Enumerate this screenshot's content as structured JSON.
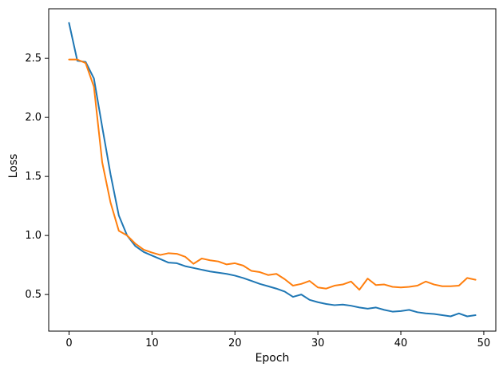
{
  "figure": {
    "background": "#ffffff"
  },
  "chart_data": {
    "type": "line",
    "title": "",
    "xlabel": "Epoch",
    "ylabel": "Loss",
    "legend": "none",
    "grid": false,
    "axis_color": "#000000",
    "xlim": [
      -2.45,
      51.45
    ],
    "ylim": [
      0.19,
      2.92
    ],
    "xticks": [
      0,
      10,
      20,
      30,
      40,
      50
    ],
    "yticks": [
      0.5,
      1.0,
      1.5,
      2.0,
      2.5
    ],
    "x": [
      0,
      1,
      2,
      3,
      4,
      5,
      6,
      7,
      8,
      9,
      10,
      11,
      12,
      13,
      14,
      15,
      16,
      17,
      18,
      19,
      20,
      21,
      22,
      23,
      24,
      25,
      26,
      27,
      28,
      29,
      30,
      31,
      32,
      33,
      34,
      35,
      36,
      37,
      38,
      39,
      40,
      41,
      42,
      43,
      44,
      45,
      46,
      47,
      48,
      49
    ],
    "series": [
      {
        "name": "blue",
        "color": "#1f77b4",
        "values": [
          2.8,
          2.48,
          2.47,
          2.33,
          1.92,
          1.52,
          1.17,
          1.0,
          0.91,
          0.86,
          0.83,
          0.8,
          0.77,
          0.765,
          0.74,
          0.725,
          0.71,
          0.695,
          0.685,
          0.675,
          0.66,
          0.64,
          0.615,
          0.59,
          0.57,
          0.55,
          0.525,
          0.48,
          0.5,
          0.455,
          0.435,
          0.42,
          0.41,
          0.415,
          0.405,
          0.39,
          0.38,
          0.39,
          0.37,
          0.355,
          0.36,
          0.37,
          0.35,
          0.34,
          0.335,
          0.325,
          0.315,
          0.34,
          0.315,
          0.325
        ]
      },
      {
        "name": "orange",
        "color": "#ff7f0e",
        "values": [
          2.49,
          2.49,
          2.46,
          2.26,
          1.62,
          1.28,
          1.04,
          1.0,
          0.93,
          0.88,
          0.855,
          0.835,
          0.85,
          0.845,
          0.82,
          0.76,
          0.805,
          0.79,
          0.78,
          0.755,
          0.765,
          0.745,
          0.7,
          0.69,
          0.665,
          0.675,
          0.63,
          0.575,
          0.59,
          0.615,
          0.56,
          0.55,
          0.575,
          0.585,
          0.61,
          0.54,
          0.635,
          0.58,
          0.585,
          0.565,
          0.56,
          0.565,
          0.575,
          0.61,
          0.585,
          0.57,
          0.57,
          0.575,
          0.64,
          0.625
        ]
      }
    ]
  }
}
